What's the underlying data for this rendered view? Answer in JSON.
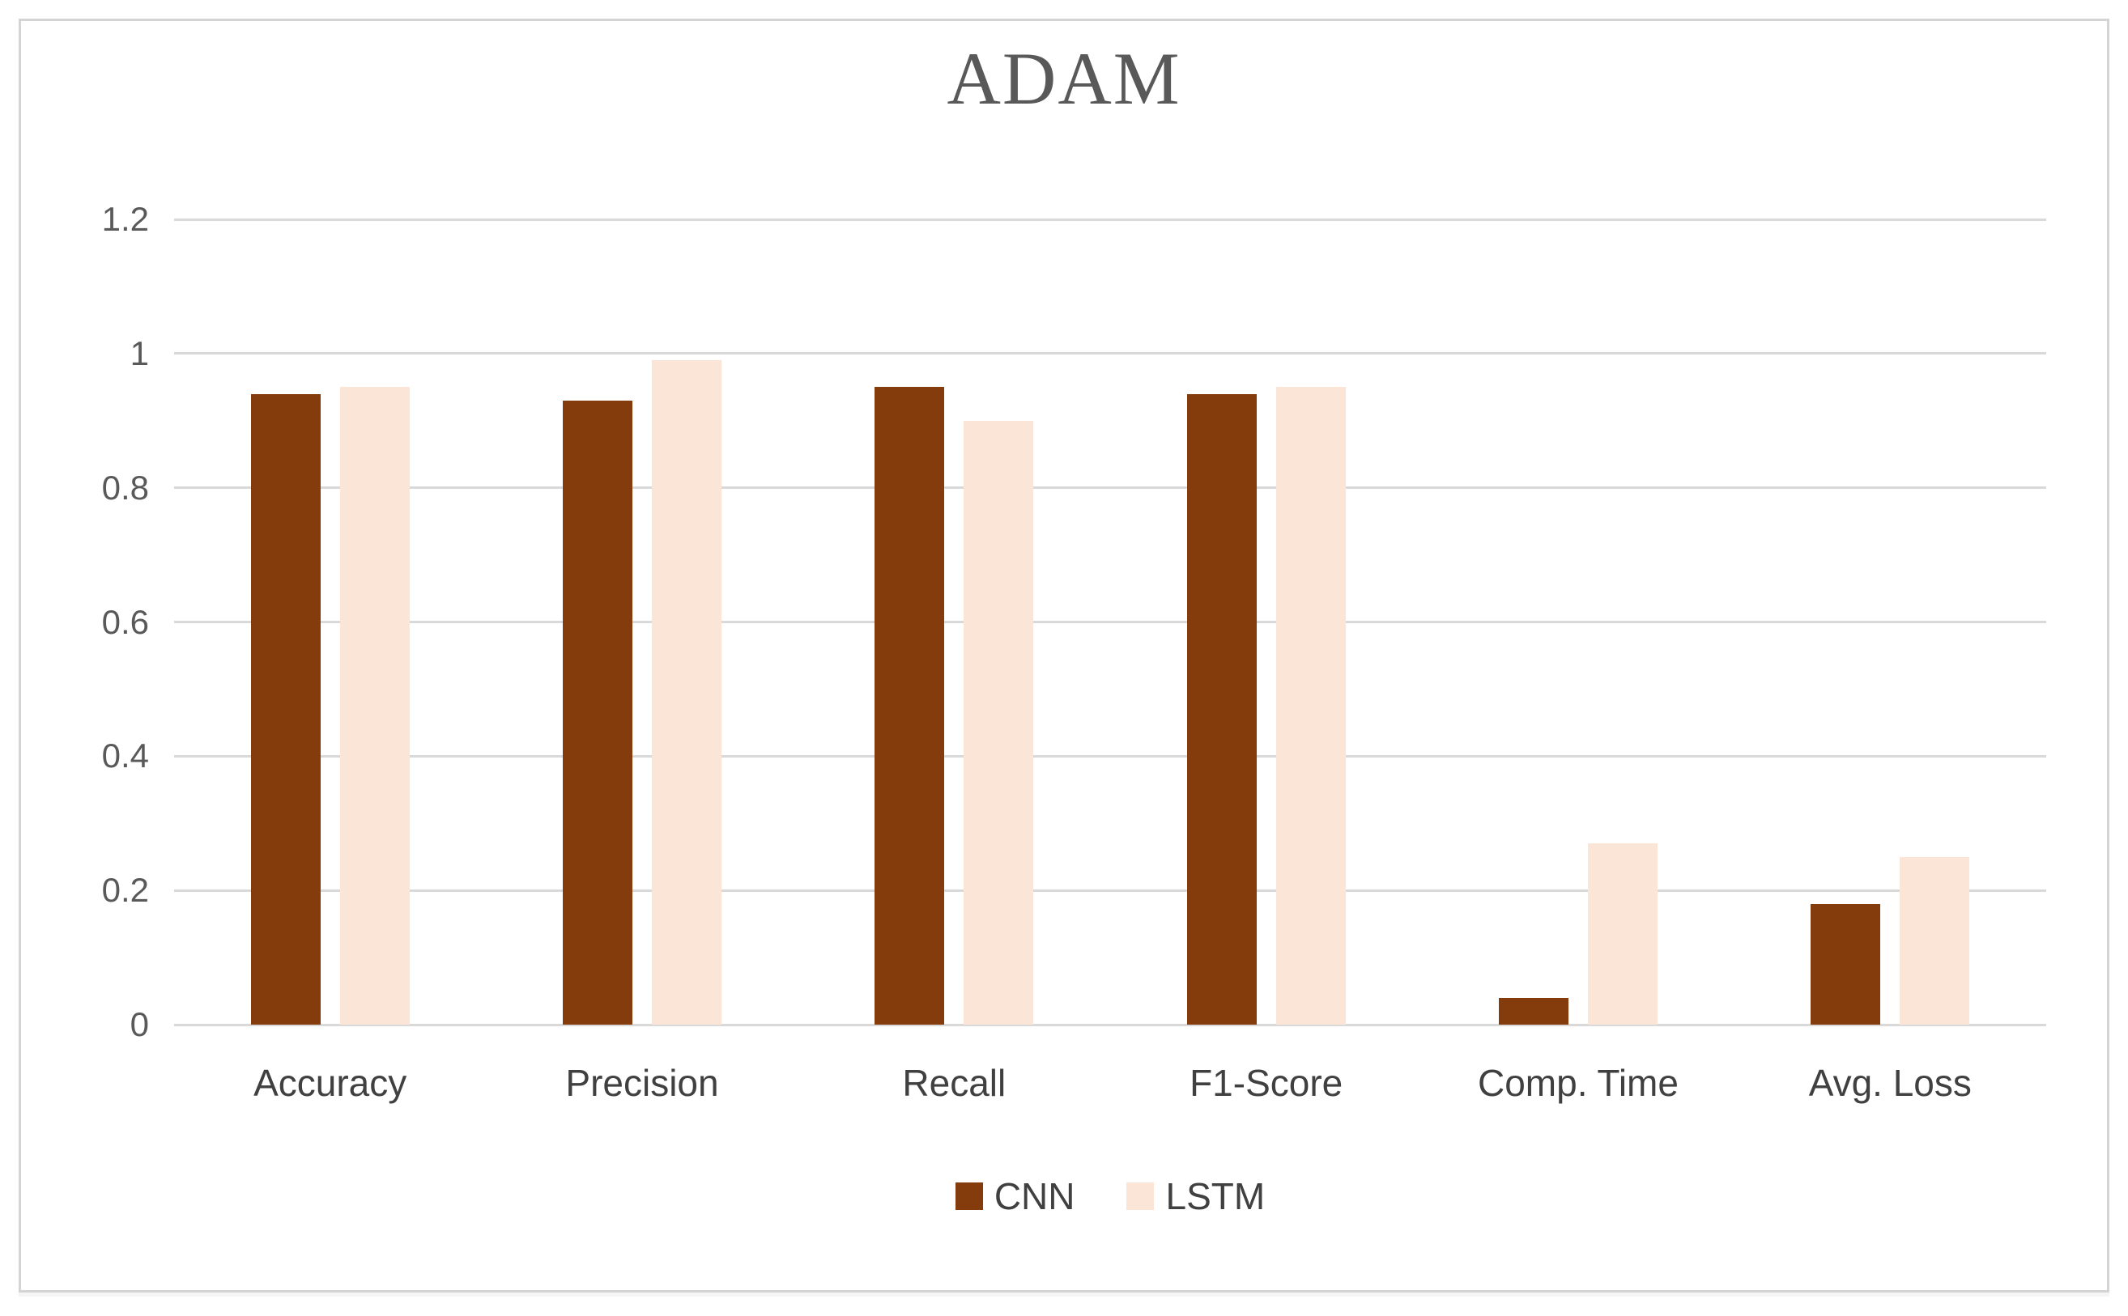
{
  "title": "ADAM",
  "colors": {
    "cnn": "#843C0C",
    "lstm": "#FBE5D6",
    "gridline": "#D9D9D9",
    "title_text": "#595959",
    "axis_tick_text": "#595959",
    "category_text": "#404040",
    "frame_border": "#D4D4D4",
    "background": "#FFFFFF"
  },
  "chart_data": {
    "type": "bar",
    "title": "ADAM",
    "categories": [
      "Accuracy",
      "Precision",
      "Recall",
      "F1-Score",
      "Comp. Time",
      "Avg. Loss"
    ],
    "series": [
      {
        "name": "CNN",
        "color": "#843C0C",
        "values": [
          0.94,
          0.93,
          0.95,
          0.94,
          0.04,
          0.18
        ]
      },
      {
        "name": "LSTM",
        "color": "#FBE5D6",
        "values": [
          0.95,
          0.99,
          0.9,
          0.95,
          0.27,
          0.25
        ]
      }
    ],
    "xlabel": "",
    "ylabel": "",
    "ylim": [
      0,
      1.2
    ],
    "yticks": [
      0,
      0.2,
      0.4,
      0.6,
      0.8,
      1,
      1.2
    ],
    "ytick_labels": [
      "0",
      "0.2",
      "0.4",
      "0.6",
      "0.8",
      "1",
      "1.2"
    ],
    "grid": true,
    "legend_position": "bottom",
    "legend_entries": [
      "CNN",
      "LSTM"
    ]
  }
}
